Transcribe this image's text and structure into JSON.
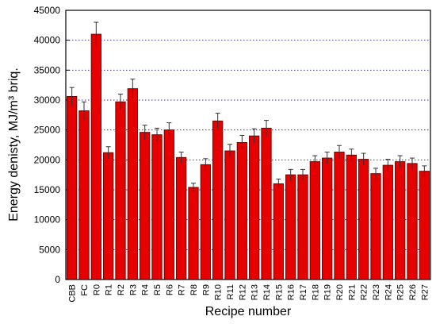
{
  "chart_data": {
    "type": "bar",
    "categories": [
      "CBB",
      "FC",
      "R0",
      "R1",
      "R2",
      "R3",
      "R4",
      "R5",
      "R6",
      "R7",
      "R8",
      "R9",
      "R10",
      "R11",
      "R12",
      "R13",
      "R14",
      "R15",
      "R16",
      "R17",
      "R18",
      "R19",
      "R20",
      "R21",
      "R22",
      "R23",
      "R24",
      "R25",
      "R26",
      "R27"
    ],
    "values": [
      30600,
      28200,
      41000,
      21200,
      29700,
      31900,
      24600,
      24200,
      25000,
      20400,
      15400,
      19200,
      26500,
      21500,
      22900,
      24000,
      25300,
      16000,
      17500,
      17500,
      19700,
      20300,
      21300,
      20800,
      20100,
      17700,
      19100,
      19700,
      19400,
      18100
    ],
    "errors": [
      1500,
      1500,
      2000,
      1000,
      1300,
      1600,
      1200,
      1100,
      1200,
      900,
      700,
      1000,
      1300,
      1100,
      1200,
      1200,
      1300,
      800,
      900,
      900,
      1000,
      1000,
      1100,
      1000,
      1000,
      900,
      1000,
      1000,
      900,
      900
    ],
    "color": "#e60000",
    "ylim": [
      0,
      45000
    ],
    "yticks": [
      0,
      5000,
      10000,
      15000,
      20000,
      25000,
      30000,
      35000,
      40000,
      45000
    ],
    "grid": true,
    "x_label": "Recipe number",
    "y_label": "Energy denisty, MJ/m³ briq."
  }
}
